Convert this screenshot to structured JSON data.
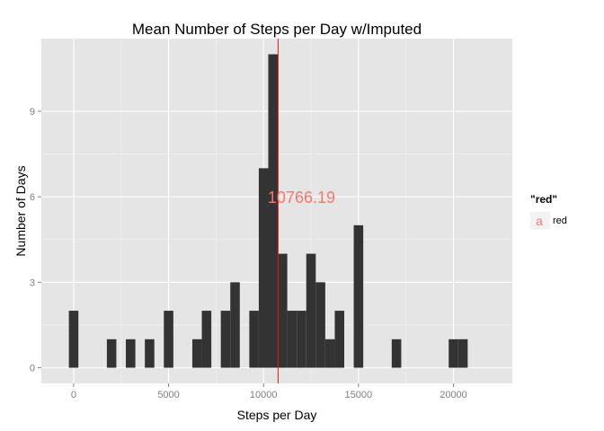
{
  "chart_data": {
    "type": "bar",
    "title": "Mean Number of Steps per Day w/Imputed",
    "xlabel": "Steps per Day",
    "ylabel": "Number of Days",
    "xlim": [
      -1700,
      23100
    ],
    "ylim": [
      -0.55,
      11.55
    ],
    "x_ticks": [
      0,
      5000,
      10000,
      15000,
      20000
    ],
    "x_tick_labels": [
      "0",
      "5000",
      "10000",
      "15000",
      "20000"
    ],
    "y_ticks": [
      0,
      3,
      6,
      9
    ],
    "y_tick_labels": [
      "0",
      "3",
      "6",
      "9"
    ],
    "bin_width": 500,
    "bins": [
      {
        "x": 0,
        "count": 2
      },
      {
        "x": 2000,
        "count": 1
      },
      {
        "x": 3000,
        "count": 1
      },
      {
        "x": 4000,
        "count": 1
      },
      {
        "x": 5000,
        "count": 2
      },
      {
        "x": 6500,
        "count": 1
      },
      {
        "x": 7000,
        "count": 2
      },
      {
        "x": 8000,
        "count": 2
      },
      {
        "x": 8500,
        "count": 3
      },
      {
        "x": 9500,
        "count": 2
      },
      {
        "x": 10000,
        "count": 7
      },
      {
        "x": 10500,
        "count": 11
      },
      {
        "x": 11000,
        "count": 4
      },
      {
        "x": 11500,
        "count": 2
      },
      {
        "x": 12000,
        "count": 2
      },
      {
        "x": 12500,
        "count": 4
      },
      {
        "x": 13000,
        "count": 3
      },
      {
        "x": 13500,
        "count": 1
      },
      {
        "x": 14000,
        "count": 2
      },
      {
        "x": 15000,
        "count": 5
      },
      {
        "x": 17000,
        "count": 1
      },
      {
        "x": 20000,
        "count": 1
      },
      {
        "x": 20500,
        "count": 1
      }
    ],
    "vline": {
      "x": 10766.19,
      "color": "#e41a1c"
    },
    "annotation": {
      "text": "10766.19",
      "x": 12000,
      "y": 6,
      "color": "#f8766d"
    },
    "legend": {
      "title": "\"red\"",
      "key_glyph": "a",
      "label": "red",
      "color": "#f8766d",
      "position": "right"
    },
    "grid": true,
    "bar_color": "#333333",
    "panel_color": "#e5e5e5"
  }
}
